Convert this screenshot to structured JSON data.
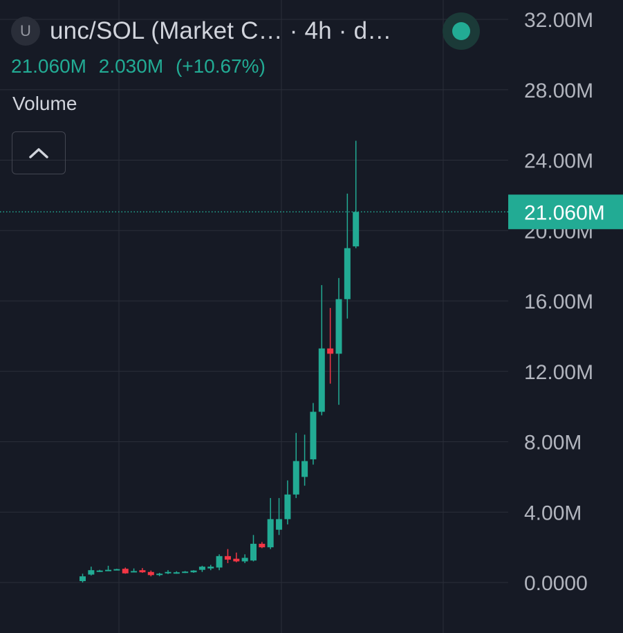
{
  "header": {
    "symbol_icon": "U",
    "title": "unc/SOL (Market C… · 4h · d…",
    "last_value": "21.060M",
    "change": "2.030M",
    "change_pct": "(+10.67%)",
    "status_icon": "green-dot-icon"
  },
  "volume": {
    "label": "Volume",
    "toggle_icon": "chevron-up-icon"
  },
  "colors": {
    "background": "#161a25",
    "up": "#22ab94",
    "down": "#f23645",
    "grid": "#2a2e39",
    "text": "#d1d4dc"
  },
  "chart_data": {
    "type": "candlestick",
    "ylim": [
      0,
      32000000
    ],
    "y_ticks": [
      "32.00M",
      "28.00M",
      "24.00M",
      "20.00M",
      "16.00M",
      "12.00M",
      "8.00M",
      "4.00M",
      "0.0000"
    ],
    "last_price_label": "21.060M",
    "last_price": 21060000,
    "candles": [
      {
        "o": 80000,
        "h": 500000,
        "l": 0,
        "c": 350000
      },
      {
        "o": 450000,
        "h": 900000,
        "l": 400000,
        "c": 700000
      },
      {
        "o": 650000,
        "h": 720000,
        "l": 600000,
        "c": 680000
      },
      {
        "o": 700000,
        "h": 950000,
        "l": 650000,
        "c": 720000
      },
      {
        "o": 750000,
        "h": 780000,
        "l": 700000,
        "c": 760000
      },
      {
        "o": 780000,
        "h": 850000,
        "l": 500000,
        "c": 520000
      },
      {
        "o": 620000,
        "h": 800000,
        "l": 580000,
        "c": 650000
      },
      {
        "o": 700000,
        "h": 820000,
        "l": 550000,
        "c": 580000
      },
      {
        "o": 600000,
        "h": 680000,
        "l": 350000,
        "c": 420000
      },
      {
        "o": 430000,
        "h": 550000,
        "l": 360000,
        "c": 500000
      },
      {
        "o": 520000,
        "h": 700000,
        "l": 480000,
        "c": 600000
      },
      {
        "o": 560000,
        "h": 640000,
        "l": 500000,
        "c": 580000
      },
      {
        "o": 600000,
        "h": 650000,
        "l": 540000,
        "c": 620000
      },
      {
        "o": 580000,
        "h": 700000,
        "l": 550000,
        "c": 680000
      },
      {
        "o": 720000,
        "h": 950000,
        "l": 600000,
        "c": 900000
      },
      {
        "o": 800000,
        "h": 1000000,
        "l": 700000,
        "c": 900000
      },
      {
        "o": 850000,
        "h": 1600000,
        "l": 700000,
        "c": 1500000
      },
      {
        "o": 1500000,
        "h": 1900000,
        "l": 1100000,
        "c": 1300000
      },
      {
        "o": 1350000,
        "h": 1700000,
        "l": 1150000,
        "c": 1200000
      },
      {
        "o": 1200000,
        "h": 1600000,
        "l": 1100000,
        "c": 1400000
      },
      {
        "o": 1250000,
        "h": 2700000,
        "l": 1200000,
        "c": 2200000
      },
      {
        "o": 2200000,
        "h": 2300000,
        "l": 1950000,
        "c": 2000000
      },
      {
        "o": 2000000,
        "h": 4800000,
        "l": 1900000,
        "c": 3600000
      },
      {
        "o": 3000000,
        "h": 4800000,
        "l": 2700000,
        "c": 3600000
      },
      {
        "o": 3600000,
        "h": 5800000,
        "l": 3300000,
        "c": 5000000
      },
      {
        "o": 5000000,
        "h": 8500000,
        "l": 4800000,
        "c": 6900000
      },
      {
        "o": 6000000,
        "h": 8400000,
        "l": 5500000,
        "c": 6900000
      },
      {
        "o": 7000000,
        "h": 10200000,
        "l": 6700000,
        "c": 9700000
      },
      {
        "o": 9700000,
        "h": 16900000,
        "l": 9500000,
        "c": 13300000
      },
      {
        "o": 13300000,
        "h": 15600000,
        "l": 11300000,
        "c": 13000000
      },
      {
        "o": 13000000,
        "h": 17300000,
        "l": 10100000,
        "c": 16100000
      },
      {
        "o": 16100000,
        "h": 22100000,
        "l": 15000000,
        "c": 19000000
      },
      {
        "o": 19100000,
        "h": 25100000,
        "l": 19000000,
        "c": 21060000
      }
    ]
  }
}
